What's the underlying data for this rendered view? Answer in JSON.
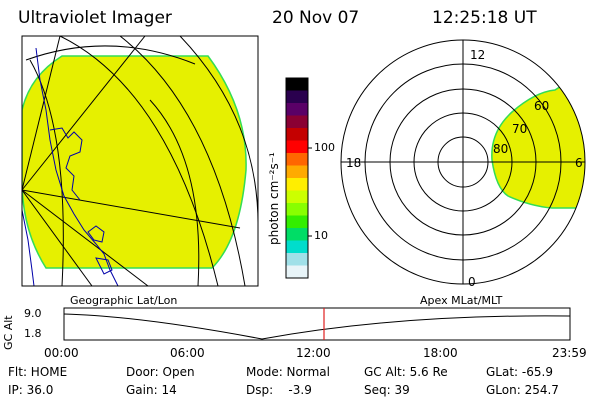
{
  "header": {
    "title": "Ultraviolet Imager",
    "date": "20 Nov 07",
    "time": "12:25:18 UT"
  },
  "colorbar": {
    "unit_label": "photon cm⁻²s⁻¹",
    "ticks": [
      "100",
      "10"
    ],
    "colors": [
      "#000000",
      "#2a004e",
      "#5a0067",
      "#8a0033",
      "#c40000",
      "#ff0000",
      "#ff6600",
      "#ffaa00",
      "#ffee00",
      "#ccff00",
      "#88ff00",
      "#33ee00",
      "#00dd66",
      "#00ddcc",
      "#a0e0e8",
      "#e8f4f8"
    ]
  },
  "polar": {
    "labels": {
      "top": "12",
      "left": "18",
      "right": "6",
      "bottom": "0"
    },
    "rings": [
      "60",
      "70",
      "80"
    ]
  },
  "altitude": {
    "y_label": "GC Alt",
    "ticks": [
      "9.0",
      "1.8"
    ],
    "left_caption": "Geographic Lat/Lon",
    "right_caption": "Apex MLat/MLT",
    "time_ticks": [
      "00:00",
      "06:00",
      "12:00",
      "18:00",
      "23:59"
    ],
    "marker_color": "#e02020"
  },
  "info": {
    "r1": [
      "Flt: HOME",
      "Door: Open",
      "Mode: Normal",
      "GC Alt: 5.6 Re",
      "GLat: -65.9"
    ],
    "r2": [
      "IP: 36.0",
      "Gain: 14",
      "Dsp:    -3.9",
      "Seq: 39",
      "GLon: 254.7"
    ]
  },
  "colors": {
    "aurora_fill": "#e6f000",
    "aurora_edge": "#33dd55",
    "coast": "#0000aa"
  }
}
